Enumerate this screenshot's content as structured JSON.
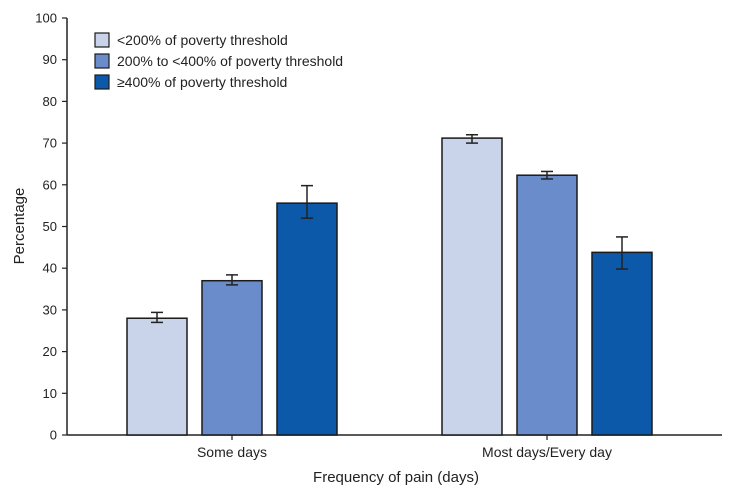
{
  "chart_data": {
    "type": "bar",
    "title": "",
    "xlabel": "Frequency of pain (days)",
    "ylabel": "Percentage",
    "ylim": [
      0,
      100
    ],
    "yticks": [
      0,
      10,
      20,
      30,
      40,
      50,
      60,
      70,
      80,
      90,
      100
    ],
    "categories": [
      "Some days",
      "Most days/Every day"
    ],
    "series": [
      {
        "name": "<200% of poverty threshold",
        "color": "#c9d3ea",
        "values": [
          28.0,
          71.2
        ],
        "error_low": [
          27.0,
          70.0
        ],
        "error_high": [
          29.4,
          72.0
        ]
      },
      {
        "name": "200% to <400% of poverty threshold",
        "color": "#6a8ccb",
        "values": [
          37.0,
          62.3
        ],
        "error_low": [
          36.0,
          61.4
        ],
        "error_high": [
          38.4,
          63.2
        ]
      },
      {
        "name": "≥400% of poverty threshold",
        "color": "#0b59a8",
        "values": [
          55.6,
          43.8
        ],
        "error_low": [
          52.0,
          39.8
        ],
        "error_high": [
          59.8,
          47.5
        ]
      }
    ],
    "grid": false,
    "legend_position": "top-left",
    "error_bars": true
  }
}
